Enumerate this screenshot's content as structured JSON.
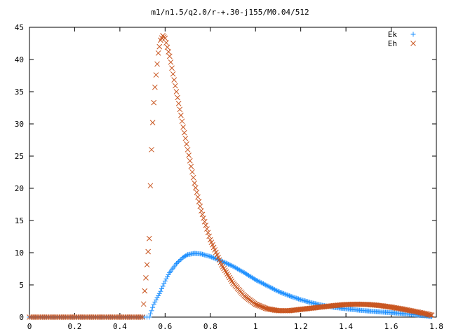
{
  "chart_data": {
    "type": "scatter",
    "title": "m1/n1.5/q2.0/r-+.30-j155/M0.04/512",
    "xlim": [
      0,
      1.8
    ],
    "ylim": [
      0,
      45
    ],
    "x_ticks": [
      0,
      0.2,
      0.4,
      0.6,
      0.8,
      1,
      1.2,
      1.4,
      1.6,
      1.8
    ],
    "x_tick_labels": [
      "0",
      "0.2",
      "0.4",
      "0.6",
      "0.8",
      "1",
      "1.2",
      "1.4",
      "1.6",
      "1.8"
    ],
    "y_ticks": [
      0,
      5,
      10,
      15,
      20,
      25,
      30,
      35,
      40,
      45
    ],
    "y_tick_labels": [
      "0",
      "5",
      "10",
      "15",
      "20",
      "25",
      "30",
      "35",
      "40",
      "45"
    ],
    "grid": false,
    "legend_position": "top-right",
    "series": [
      {
        "name": "Ek",
        "marker": "plus",
        "color": "#1e90ff",
        "x": [
          0,
          0.05,
          0.1,
          0.15,
          0.2,
          0.25,
          0.3,
          0.35,
          0.4,
          0.45,
          0.5,
          0.53,
          0.55,
          0.58,
          0.6,
          0.62,
          0.65,
          0.68,
          0.7,
          0.73,
          0.76,
          0.8,
          0.85,
          0.9,
          0.95,
          1.0,
          1.05,
          1.1,
          1.15,
          1.2,
          1.25,
          1.3,
          1.35,
          1.4,
          1.45,
          1.5,
          1.55,
          1.6,
          1.65,
          1.7,
          1.75,
          1.78
        ],
        "y": [
          0,
          0,
          0,
          0,
          0,
          0,
          0,
          0,
          0,
          0,
          0,
          0,
          2.0,
          4.0,
          5.6,
          6.9,
          8.3,
          9.3,
          9.7,
          9.9,
          9.8,
          9.4,
          8.7,
          7.9,
          6.9,
          5.8,
          4.9,
          4.0,
          3.3,
          2.7,
          2.2,
          1.8,
          1.5,
          1.3,
          1.1,
          0.95,
          0.8,
          0.7,
          0.55,
          0.4,
          0.2,
          0.05
        ]
      },
      {
        "name": "Eh",
        "marker": "cross",
        "color": "#c8541e",
        "x": [
          0,
          0.05,
          0.1,
          0.15,
          0.2,
          0.25,
          0.3,
          0.35,
          0.4,
          0.45,
          0.5,
          0.53,
          0.535,
          0.54,
          0.545,
          0.55,
          0.555,
          0.56,
          0.565,
          0.57,
          0.58,
          0.59,
          0.6,
          0.62,
          0.65,
          0.68,
          0.7,
          0.73,
          0.76,
          0.8,
          0.85,
          0.9,
          0.95,
          1.0,
          1.05,
          1.1,
          1.15,
          1.2,
          1.25,
          1.3,
          1.35,
          1.4,
          1.45,
          1.5,
          1.55,
          1.6,
          1.65,
          1.7,
          1.75,
          1.78
        ],
        "y": [
          0,
          0,
          0,
          0,
          0,
          0,
          0,
          0,
          0,
          0,
          0,
          12.2,
          20.4,
          26.0,
          30.2,
          33.3,
          35.7,
          37.6,
          39.3,
          41.0,
          43.0,
          43.7,
          43.3,
          40.5,
          35.0,
          29.5,
          26.0,
          20.8,
          16.5,
          12.0,
          8.1,
          5.3,
          3.3,
          2.0,
          1.3,
          1.0,
          1.0,
          1.2,
          1.4,
          1.6,
          1.8,
          1.95,
          2.0,
          1.95,
          1.8,
          1.55,
          1.25,
          0.9,
          0.55,
          0.3
        ]
      }
    ]
  }
}
